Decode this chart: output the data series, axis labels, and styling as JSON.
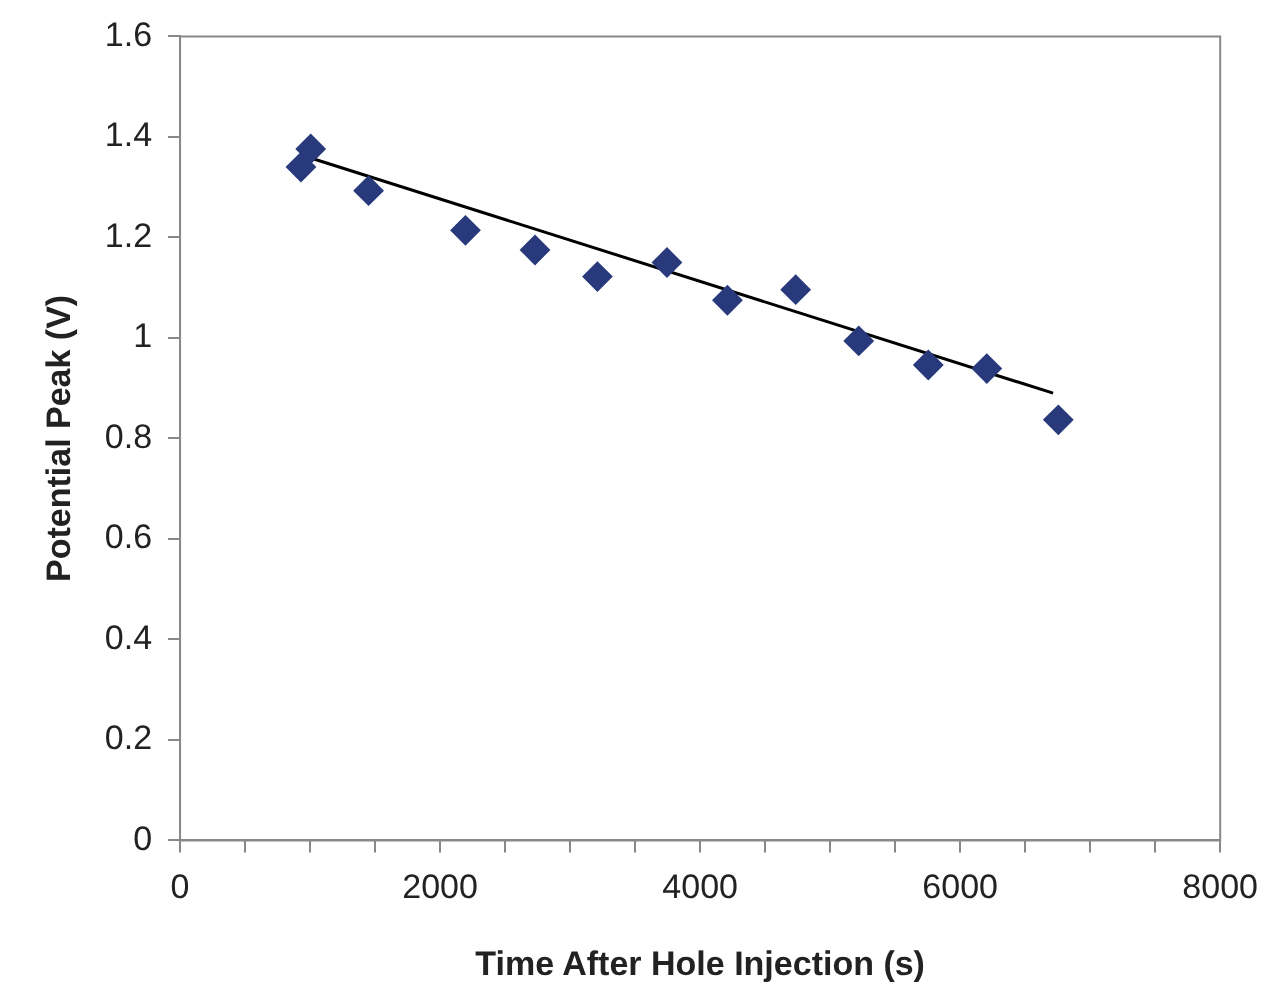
{
  "chart_data": {
    "type": "scatter",
    "xlabel": "Time After Hole Injection (s)",
    "ylabel": "Potential Peak (V)",
    "xlim": [
      0,
      8000
    ],
    "xticks": [
      0,
      {
        "value": 500,
        "label": null
      },
      {
        "value": 1000,
        "label": null
      },
      {
        "value": 1500,
        "label": null
      },
      2000,
      {
        "value": 2500,
        "label": null
      },
      {
        "value": 3000,
        "label": null
      },
      {
        "value": 3500,
        "label": null
      },
      4000,
      {
        "value": 4500,
        "label": null
      },
      {
        "value": 5000,
        "label": null
      },
      {
        "value": 5500,
        "label": null
      },
      6000,
      {
        "value": 6500,
        "label": null
      },
      {
        "value": 7000,
        "label": null
      },
      {
        "value": 7500,
        "label": null
      },
      8000
    ],
    "ylim": [
      0,
      1.6
    ],
    "yticks": [
      0,
      0.2,
      0.4,
      0.6,
      0.8,
      1,
      1.2,
      1.4,
      1.6
    ],
    "grid": false,
    "legend": false,
    "marker": "diamond",
    "series": [
      {
        "type": "scatter",
        "color": "#283a7c",
        "x": [
          930,
          1005,
          1450,
          2195,
          2730,
          3210,
          3745,
          4210,
          4735,
          5220,
          5755,
          6205,
          6755
        ],
        "values": [
          1.34,
          1.376,
          1.293,
          1.214,
          1.175,
          1.122,
          1.15,
          1.075,
          1.096,
          0.994,
          0.946,
          0.939,
          0.837
        ]
      },
      {
        "type": "line",
        "color": "#000000",
        "x": [
          1005,
          6715
        ],
        "values": [
          1.358,
          0.89
        ],
        "marker": "none",
        "line_style": "solid"
      }
    ]
  }
}
